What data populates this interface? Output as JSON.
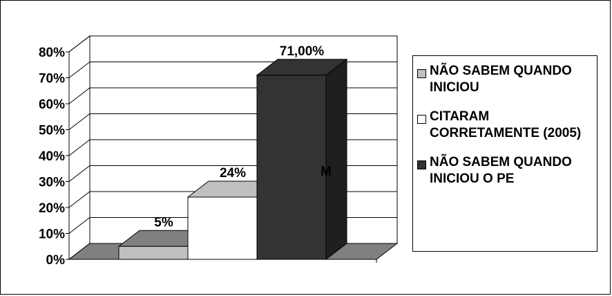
{
  "chart_data": {
    "type": "bar",
    "style": "3d-stepped",
    "ylim": [
      0,
      0.8
    ],
    "yticks": [
      "0%",
      "10%",
      "20%",
      "30%",
      "40%",
      "50%",
      "60%",
      "70%",
      "80%"
    ],
    "grid": true,
    "legend_position": "right",
    "series": [
      {
        "name": "NÃO SABEM QUANDO INICIOU",
        "value": 0.05,
        "label": "5%",
        "color": "#c0c0c0"
      },
      {
        "name": "CITARAM CORRETAMENTE (2005)",
        "value": 0.24,
        "label": "24%",
        "color": "#ffffff"
      },
      {
        "name": "NÃO SABEM QUANDO INICIOU O PE",
        "value": 0.71,
        "label": "71,00%",
        "color": "#333333"
      }
    ],
    "annotations": [
      "M"
    ]
  },
  "colors": {
    "floor": "#808080",
    "top_light": "#c0c0c0",
    "dark_bar": "#333333"
  }
}
